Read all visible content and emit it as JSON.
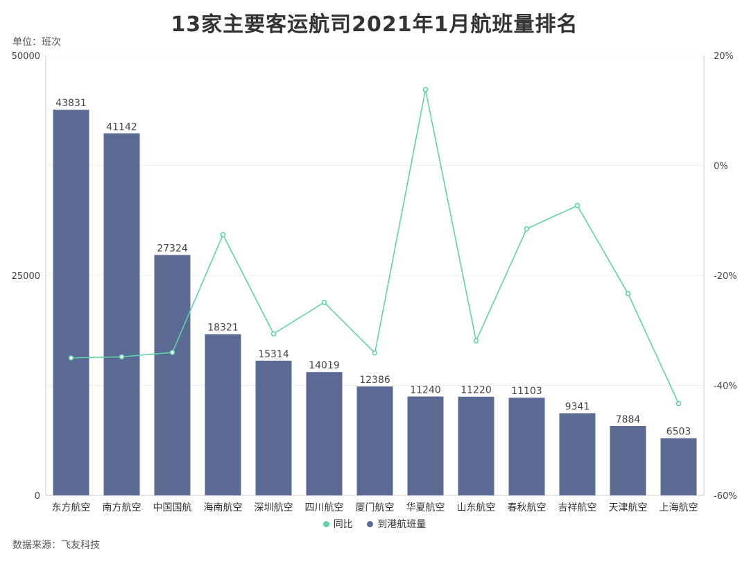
{
  "title": "13家主要客运航司2021年1月航班量排名",
  "unit_label": "单位：班次",
  "source_label": "数据来源：飞友科技",
  "colors": {
    "bar": "#5a6a93",
    "line": "#5fd3a7",
    "axis": "#cccccc",
    "grid": "#f0f0f0",
    "text": "#444444"
  },
  "chart_data": {
    "type": "bar",
    "categories": [
      "东方航空",
      "南方航空",
      "中国国航",
      "海南航空",
      "深圳航空",
      "四川航空",
      "厦门航空",
      "华夏航空",
      "山东航空",
      "春秋航空",
      "吉祥航空",
      "天津航空",
      "上海航空"
    ],
    "series": [
      {
        "name": "到港航班量",
        "type": "bar",
        "axis": "left",
        "values": [
          43831,
          41142,
          27324,
          18321,
          15314,
          14019,
          12386,
          11240,
          11220,
          11103,
          9341,
          7884,
          6503
        ]
      },
      {
        "name": "同比",
        "type": "line",
        "axis": "right",
        "values": [
          -35.0,
          -34.8,
          -34.0,
          -12.6,
          -30.6,
          -24.9,
          -34.1,
          13.8,
          -31.9,
          -11.5,
          -7.3,
          -23.3,
          -43.3
        ]
      }
    ],
    "ylim_left": [
      0,
      50000
    ],
    "yticks_left": [
      "0",
      "25000",
      "50000"
    ],
    "ylim_right": [
      -60,
      20
    ],
    "yticks_right": [
      "-60%",
      "-40%",
      "-20%",
      "0%",
      "20%"
    ],
    "legend": [
      "同比",
      "到港航班量"
    ],
    "legend_position": "bottom"
  }
}
